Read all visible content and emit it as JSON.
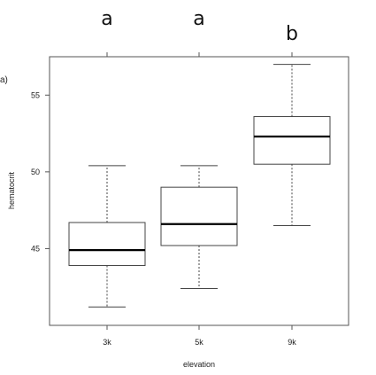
{
  "panel_label": "a)",
  "chart_data": {
    "type": "box",
    "xlabel": "elevation",
    "ylabel": "hematocrit",
    "categories": [
      "3k",
      "5k",
      "9k"
    ],
    "group_letters": [
      "a",
      "a",
      "b"
    ],
    "ylim": [
      40,
      57.5
    ],
    "yticks": [
      45,
      50,
      55
    ],
    "boxes": [
      {
        "category": "3k",
        "whisker_low": 41.2,
        "q1": 43.9,
        "median": 44.9,
        "q3": 46.7,
        "whisker_high": 50.4
      },
      {
        "category": "5k",
        "whisker_low": 42.4,
        "q1": 45.2,
        "median": 46.6,
        "q3": 49.0,
        "whisker_high": 50.4
      },
      {
        "category": "9k",
        "whisker_low": 46.5,
        "q1": 50.5,
        "median": 52.3,
        "q3": 53.6,
        "whisker_high": 57.0
      }
    ],
    "grid": false,
    "legend": "none"
  }
}
